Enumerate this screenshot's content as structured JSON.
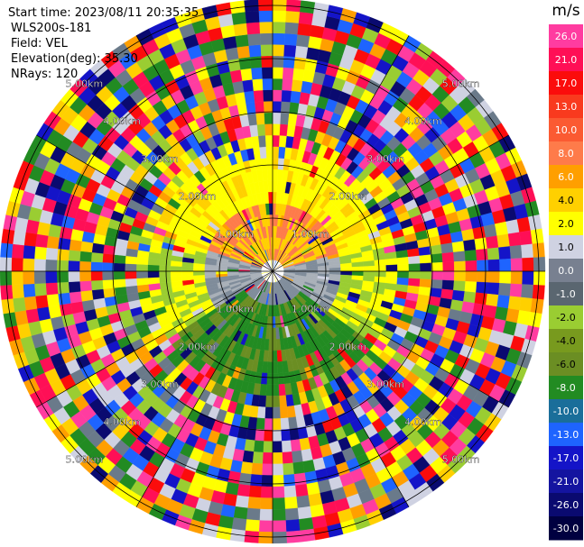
{
  "header": {
    "start_time": "Start time: 2023/08/11 20:35:35",
    "instrument": "WLS200s-181",
    "field": "Field: VEL",
    "elevation": "Elevation(deg): 35.30",
    "nrays": "NRays: 120"
  },
  "ppi": {
    "ring_labels": [
      "1.00km",
      "2.00km",
      "3.00km",
      "4.00km",
      "5.00km"
    ],
    "nrays": 120,
    "range_km": 5.0
  },
  "colorbar": {
    "unit": "m/s",
    "levels": [
      "26.0",
      "21.0",
      "17.0",
      "13.0",
      "10.0",
      "8.0",
      "6.0",
      "4.0",
      "2.0",
      "1.0",
      "0.0",
      "-1.0",
      "-2.0",
      "-4.0",
      "-6.0",
      "-8.0",
      "-10.0",
      "-13.0",
      "-17.0",
      "-21.0",
      "-26.0",
      "-30.0"
    ],
    "colors": [
      "#ff3ca0",
      "#ff0f56",
      "#fb0c0c",
      "#f93a1e",
      "#fb5a32",
      "#fe7b4a",
      "#ff9f00",
      "#ffd000",
      "#ffff00",
      "#cfd2e2",
      "#788090",
      "#5a6670",
      "#9acd32",
      "#789a1e",
      "#6b8e23",
      "#228b22",
      "#1a6e9a",
      "#1e64ff",
      "#1414c8",
      "#1414a0",
      "#0a0a70",
      "#000040"
    ]
  }
}
